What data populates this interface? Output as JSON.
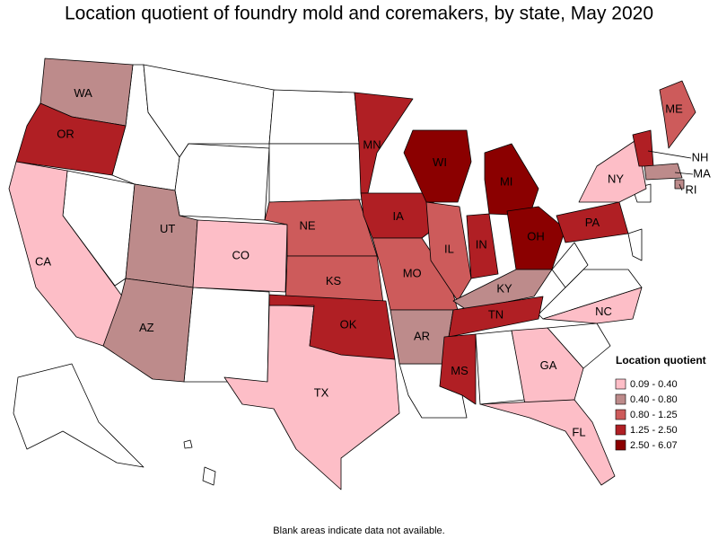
{
  "title": "Location quotient of foundry mold and coremakers, by state, May 2020",
  "legend": {
    "title": "Location quotient",
    "items": [
      {
        "label": "0.09 - 0.40",
        "color": "#fdbec7"
      },
      {
        "label": "0.40 - 0.80",
        "color": "#bd8b8b"
      },
      {
        "label": "0.80 - 1.25",
        "color": "#cd5b5b"
      },
      {
        "label": "1.25 - 2.50",
        "color": "#b01f24"
      },
      {
        "label": "2.50 - 6.07",
        "color": "#8b0000"
      }
    ]
  },
  "states": [
    {
      "label": "WA",
      "bin": 1
    },
    {
      "label": "OR",
      "bin": 3
    },
    {
      "label": "CA",
      "bin": 0
    },
    {
      "label": "UT",
      "bin": 1
    },
    {
      "label": "AZ",
      "bin": 1
    },
    {
      "label": "CO",
      "bin": 0
    },
    {
      "label": "TX",
      "bin": 0
    },
    {
      "label": "NE",
      "bin": 2
    },
    {
      "label": "KS",
      "bin": 2
    },
    {
      "label": "OK",
      "bin": 3
    },
    {
      "label": "MN",
      "bin": 3
    },
    {
      "label": "IA",
      "bin": 3
    },
    {
      "label": "MO",
      "bin": 2
    },
    {
      "label": "AR",
      "bin": 1
    },
    {
      "label": "WI",
      "bin": 4
    },
    {
      "label": "IL",
      "bin": 2
    },
    {
      "label": "IN",
      "bin": 3
    },
    {
      "label": "MI",
      "bin": 4
    },
    {
      "label": "OH",
      "bin": 4
    },
    {
      "label": "KY",
      "bin": 1
    },
    {
      "label": "TN",
      "bin": 3
    },
    {
      "label": "MS",
      "bin": 3
    },
    {
      "label": "PA",
      "bin": 3
    },
    {
      "label": "NY",
      "bin": 0
    },
    {
      "label": "ME",
      "bin": 2
    },
    {
      "label": "NH",
      "bin": 3
    },
    {
      "label": "MA",
      "bin": 1
    },
    {
      "label": "RI",
      "bin": 1
    },
    {
      "label": "NC",
      "bin": 0
    },
    {
      "label": "GA",
      "bin": 0
    },
    {
      "label": "FL",
      "bin": 0
    }
  ],
  "footnote": "Blank areas indicate data not available."
}
